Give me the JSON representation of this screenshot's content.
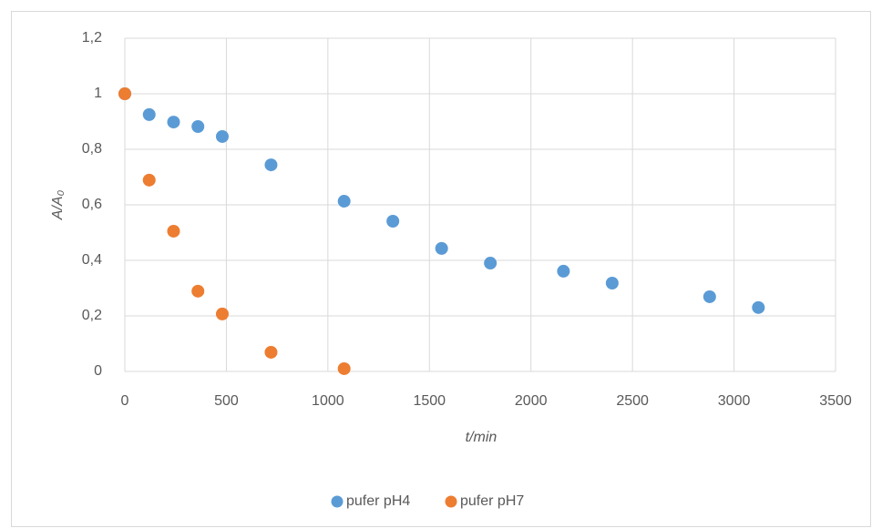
{
  "chart_data": {
    "type": "scatter",
    "x_label": "t/min",
    "y_label": "A/A₀",
    "xlim": [
      0,
      3500
    ],
    "xticks": [
      0,
      500,
      1000,
      1500,
      2000,
      2500,
      3000,
      3500
    ],
    "ylim": [
      0,
      1.2
    ],
    "yticks": [
      0,
      {
        "value": 0.2,
        "label": "0,2"
      },
      {
        "value": 0.4,
        "label": "0,4"
      },
      {
        "value": 0.6,
        "label": "0,6"
      },
      {
        "value": 0.8,
        "label": "0,8"
      },
      1,
      {
        "value": 1.2,
        "label": "1,2"
      }
    ],
    "grid": true,
    "legend": "bottom",
    "series": [
      {
        "name": "pufer pH4",
        "color": "#5b9bd5",
        "x": [
          0,
          120,
          240,
          360,
          480,
          720,
          1080,
          1320,
          1560,
          1800,
          2160,
          2400,
          2880,
          3120
        ],
        "values": [
          1,
          0.925,
          0.898,
          0.882,
          0.846,
          0.744,
          0.613,
          0.541,
          0.443,
          0.39,
          0.361,
          0.318,
          0.269,
          0.23
        ]
      },
      {
        "name": "pufer pH7",
        "color": "#ed7d31",
        "x": [
          0,
          120,
          240,
          360,
          480,
          720,
          1080
        ],
        "values": [
          1,
          0.689,
          0.505,
          0.289,
          0.207,
          0.069,
          0.01
        ]
      }
    ]
  }
}
